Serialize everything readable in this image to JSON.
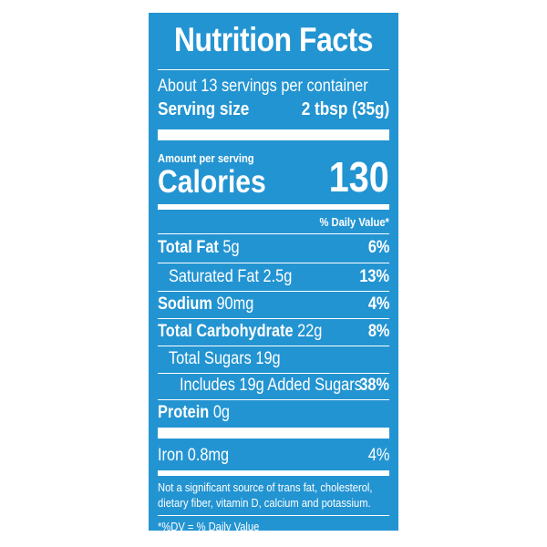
{
  "label": {
    "title": "Nutrition Facts",
    "servings": "About 13 servings per container",
    "serving_size_label": "Serving size",
    "serving_size_value": "2 tbsp (35g)",
    "amount_per_serving": "Amount per serving",
    "calories_label": "Calories",
    "calories_value": "130",
    "daily_value_header": "% Daily Value*",
    "nutrients": [
      {
        "name": "Total Fat",
        "amount": "5g",
        "pct": "6%"
      },
      {
        "name": "Saturated Fat",
        "amount": "2.5g",
        "pct": "13%"
      },
      {
        "name": "Sodium",
        "amount": "90mg",
        "pct": "4%"
      },
      {
        "name": "Total Carbohydrate",
        "amount": "22g",
        "pct": "8%"
      },
      {
        "name": "Total Sugars",
        "amount": "19g",
        "pct": ""
      },
      {
        "name": "Includes 19g Added Sugars",
        "amount": "",
        "pct": "38%"
      },
      {
        "name": "Protein",
        "amount": "0g",
        "pct": ""
      },
      {
        "name": "Iron",
        "amount": "0.8mg",
        "pct": "4%"
      }
    ],
    "footnote": "Not a significant source of trans fat, cholesterol, dietary fiber, vitamin D, calcium and potassium.",
    "dv_note": "*%DV = % Daily Value"
  },
  "colors": {
    "label_background": "#2394d2",
    "text": "#ffffff"
  }
}
